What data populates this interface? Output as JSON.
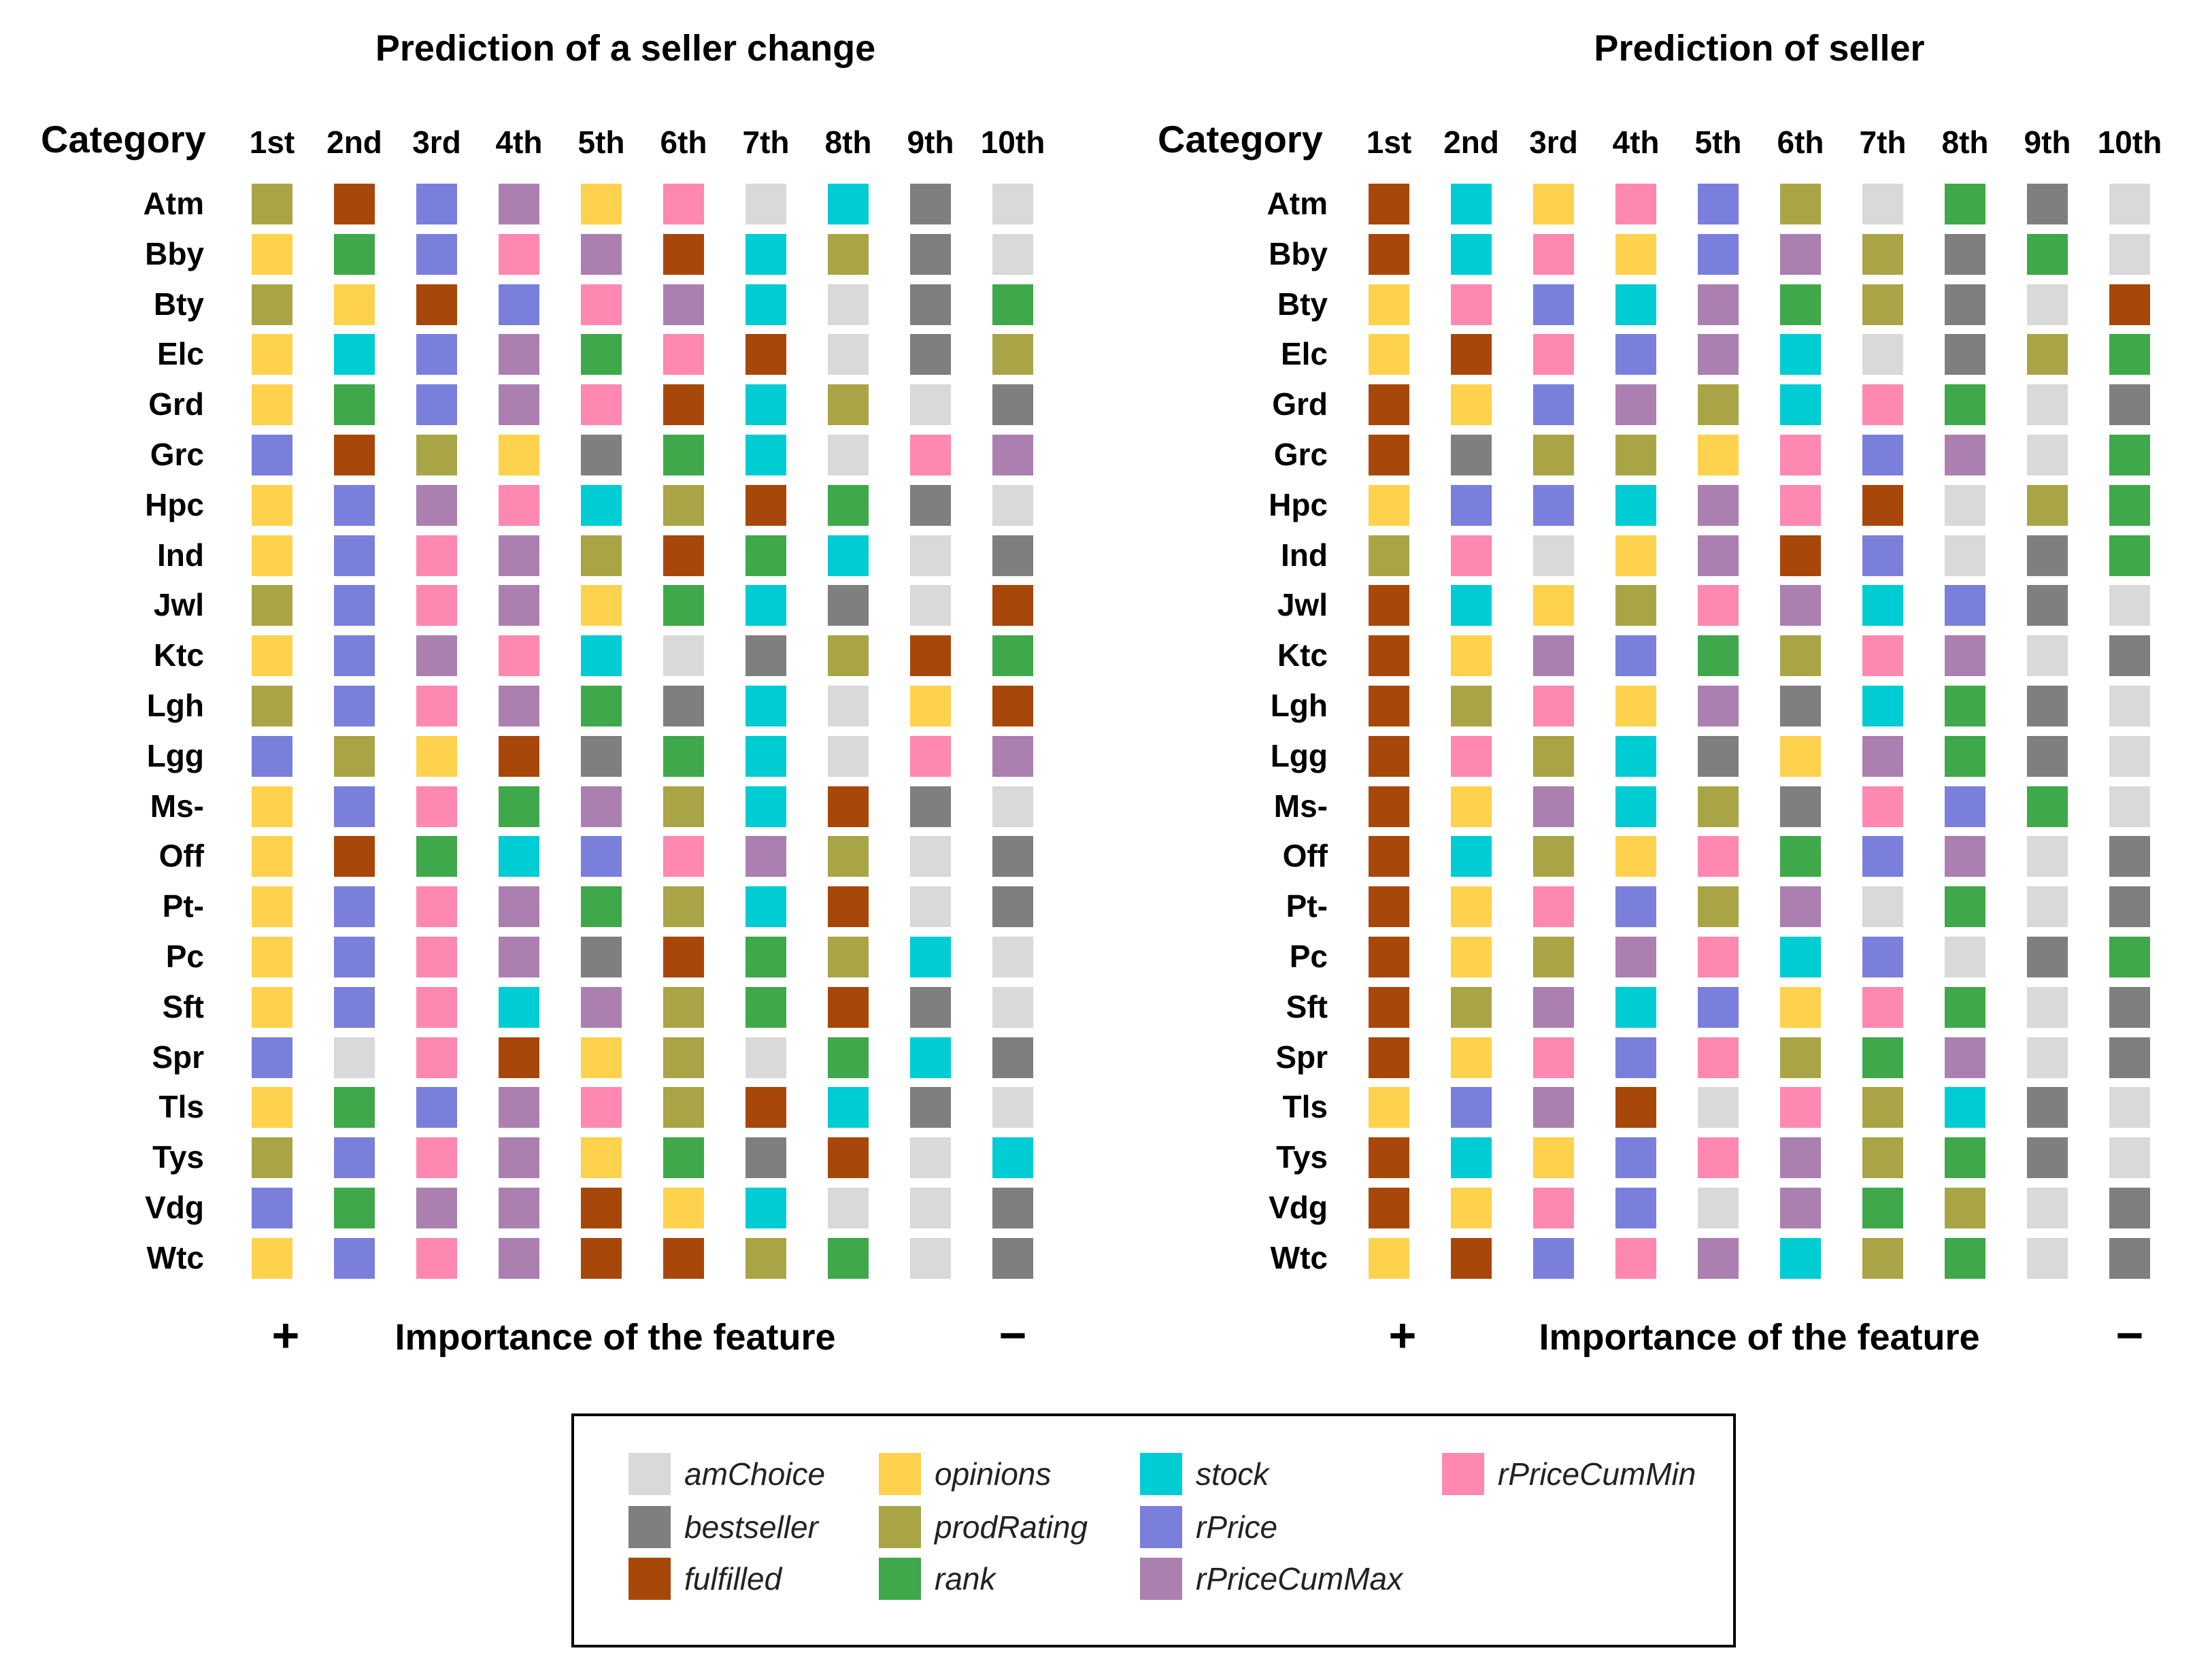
{
  "chart_data": {
    "type": "heatmap",
    "color_map": {
      "amChoice": "#d9d9d9",
      "bestseller": "#7f7f7f",
      "fulfilled": "#a8470a",
      "opinions": "#ffd24d",
      "prodRating": "#a9a547",
      "rank": "#3fa84a",
      "stock": "#00ccd4",
      "rPrice": "#7b7fdc",
      "rPriceCumMax": "#ab7fb0",
      "rPriceCumMin": "#ff88b0"
    },
    "legend": [
      [
        "amChoice",
        "bestseller",
        "fulfilled"
      ],
      [
        "opinions",
        "prodRating",
        "rank"
      ],
      [
        "stock",
        "rPrice",
        "rPriceCumMax"
      ],
      [
        "rPriceCumMin"
      ]
    ],
    "columns": [
      "1st",
      "2nd",
      "3rd",
      "4th",
      "5th",
      "6th",
      "7th",
      "8th",
      "9th",
      "10th"
    ],
    "column_header": "Category",
    "xlabel": "Importance of the feature",
    "x_left_sign": "+",
    "x_right_sign": "−",
    "panels": [
      {
        "title": "Prediction of a seller change",
        "rows": [
          {
            "label": "Atm",
            "values": [
              "prodRating",
              "fulfilled",
              "rPrice",
              "rPriceCumMax",
              "opinions",
              "rPriceCumMin",
              "amChoice",
              "stock",
              "bestseller",
              "amChoice"
            ]
          },
          {
            "label": "Bby",
            "values": [
              "opinions",
              "rank",
              "rPrice",
              "rPriceCumMin",
              "rPriceCumMax",
              "fulfilled",
              "stock",
              "prodRating",
              "bestseller",
              "amChoice"
            ]
          },
          {
            "label": "Bty",
            "values": [
              "prodRating",
              "opinions",
              "fulfilled",
              "rPrice",
              "rPriceCumMin",
              "rPriceCumMax",
              "stock",
              "amChoice",
              "bestseller",
              "rank"
            ]
          },
          {
            "label": "Elc",
            "values": [
              "opinions",
              "stock",
              "rPrice",
              "rPriceCumMax",
              "rank",
              "rPriceCumMin",
              "fulfilled",
              "amChoice",
              "bestseller",
              "prodRating"
            ]
          },
          {
            "label": "Grd",
            "values": [
              "opinions",
              "rank",
              "rPrice",
              "rPriceCumMax",
              "rPriceCumMin",
              "fulfilled",
              "stock",
              "prodRating",
              "amChoice",
              "bestseller"
            ]
          },
          {
            "label": "Grc",
            "values": [
              "rPrice",
              "fulfilled",
              "prodRating",
              "opinions",
              "bestseller",
              "rank",
              "stock",
              "amChoice",
              "rPriceCumMin",
              "rPriceCumMax"
            ]
          },
          {
            "label": "Hpc",
            "values": [
              "opinions",
              "rPrice",
              "rPriceCumMax",
              "rPriceCumMin",
              "stock",
              "prodRating",
              "fulfilled",
              "rank",
              "bestseller",
              "amChoice"
            ]
          },
          {
            "label": "Ind",
            "values": [
              "opinions",
              "rPrice",
              "rPriceCumMin",
              "rPriceCumMax",
              "prodRating",
              "fulfilled",
              "rank",
              "stock",
              "amChoice",
              "bestseller"
            ]
          },
          {
            "label": "Jwl",
            "values": [
              "prodRating",
              "rPrice",
              "rPriceCumMin",
              "rPriceCumMax",
              "opinions",
              "rank",
              "stock",
              "bestseller",
              "amChoice",
              "fulfilled"
            ]
          },
          {
            "label": "Ktc",
            "values": [
              "opinions",
              "rPrice",
              "rPriceCumMax",
              "rPriceCumMin",
              "stock",
              "amChoice",
              "bestseller",
              "prodRating",
              "fulfilled",
              "rank"
            ]
          },
          {
            "label": "Lgh",
            "values": [
              "prodRating",
              "rPrice",
              "rPriceCumMin",
              "rPriceCumMax",
              "rank",
              "bestseller",
              "stock",
              "amChoice",
              "opinions",
              "fulfilled"
            ]
          },
          {
            "label": "Lgg",
            "values": [
              "rPrice",
              "prodRating",
              "opinions",
              "fulfilled",
              "bestseller",
              "rank",
              "stock",
              "amChoice",
              "rPriceCumMin",
              "rPriceCumMax"
            ]
          },
          {
            "label": "Ms-",
            "values": [
              "opinions",
              "rPrice",
              "rPriceCumMin",
              "rank",
              "rPriceCumMax",
              "prodRating",
              "stock",
              "fulfilled",
              "bestseller",
              "amChoice"
            ]
          },
          {
            "label": "Off",
            "values": [
              "opinions",
              "fulfilled",
              "rank",
              "stock",
              "rPrice",
              "rPriceCumMin",
              "rPriceCumMax",
              "prodRating",
              "amChoice",
              "bestseller"
            ]
          },
          {
            "label": "Pt-",
            "values": [
              "opinions",
              "rPrice",
              "rPriceCumMin",
              "rPriceCumMax",
              "rank",
              "prodRating",
              "stock",
              "fulfilled",
              "amChoice",
              "bestseller"
            ]
          },
          {
            "label": "Pc",
            "values": [
              "opinions",
              "rPrice",
              "rPriceCumMin",
              "rPriceCumMax",
              "bestseller",
              "fulfilled",
              "rank",
              "prodRating",
              "stock",
              "amChoice"
            ]
          },
          {
            "label": "Sft",
            "values": [
              "opinions",
              "rPrice",
              "rPriceCumMin",
              "stock",
              "rPriceCumMax",
              "prodRating",
              "rank",
              "fulfilled",
              "bestseller",
              "amChoice"
            ]
          },
          {
            "label": "Spr",
            "values": [
              "rPrice",
              "amChoice",
              "rPriceCumMin",
              "fulfilled",
              "opinions",
              "prodRating",
              "amChoice",
              "rank",
              "stock",
              "bestseller"
            ]
          },
          {
            "label": "Tls",
            "values": [
              "opinions",
              "rank",
              "rPrice",
              "rPriceCumMax",
              "rPriceCumMin",
              "prodRating",
              "fulfilled",
              "stock",
              "bestseller",
              "amChoice"
            ]
          },
          {
            "label": "Tys",
            "values": [
              "prodRating",
              "rPrice",
              "rPriceCumMin",
              "rPriceCumMax",
              "opinions",
              "rank",
              "bestseller",
              "fulfilled",
              "amChoice",
              "stock"
            ]
          },
          {
            "label": "Vdg",
            "values": [
              "rPrice",
              "rank",
              "rPriceCumMax",
              "rPriceCumMax",
              "fulfilled",
              "opinions",
              "stock",
              "amChoice",
              "amChoice",
              "bestseller"
            ]
          },
          {
            "label": "Wtc",
            "values": [
              "opinions",
              "rPrice",
              "rPriceCumMin",
              "rPriceCumMax",
              "fulfilled",
              "fulfilled",
              "prodRating",
              "rank",
              "amChoice",
              "bestseller"
            ]
          }
        ]
      },
      {
        "title": "Prediction of seller",
        "rows": [
          {
            "label": "Atm",
            "values": [
              "fulfilled",
              "stock",
              "opinions",
              "rPriceCumMin",
              "rPrice",
              "prodRating",
              "amChoice",
              "rank",
              "bestseller",
              "amChoice"
            ]
          },
          {
            "label": "Bby",
            "values": [
              "fulfilled",
              "stock",
              "rPriceCumMin",
              "opinions",
              "rPrice",
              "rPriceCumMax",
              "prodRating",
              "bestseller",
              "rank",
              "amChoice"
            ]
          },
          {
            "label": "Bty",
            "values": [
              "opinions",
              "rPriceCumMin",
              "rPrice",
              "stock",
              "rPriceCumMax",
              "rank",
              "prodRating",
              "bestseller",
              "amChoice",
              "fulfilled"
            ]
          },
          {
            "label": "Elc",
            "values": [
              "opinions",
              "fulfilled",
              "rPriceCumMin",
              "rPrice",
              "rPriceCumMax",
              "stock",
              "amChoice",
              "bestseller",
              "prodRating",
              "rank"
            ]
          },
          {
            "label": "Grd",
            "values": [
              "fulfilled",
              "opinions",
              "rPrice",
              "rPriceCumMax",
              "prodRating",
              "stock",
              "rPriceCumMin",
              "rank",
              "amChoice",
              "bestseller"
            ]
          },
          {
            "label": "Grc",
            "values": [
              "fulfilled",
              "bestseller",
              "prodRating",
              "prodRating",
              "opinions",
              "rPriceCumMin",
              "rPrice",
              "rPriceCumMax",
              "amChoice",
              "rank"
            ]
          },
          {
            "label": "Hpc",
            "values": [
              "opinions",
              "rPrice",
              "rPrice",
              "stock",
              "rPriceCumMax",
              "rPriceCumMin",
              "fulfilled",
              "amChoice",
              "prodRating",
              "rank"
            ]
          },
          {
            "label": "Ind",
            "values": [
              "prodRating",
              "rPriceCumMin",
              "amChoice",
              "opinions",
              "rPriceCumMax",
              "fulfilled",
              "rPrice",
              "amChoice",
              "bestseller",
              "rank"
            ]
          },
          {
            "label": "Jwl",
            "values": [
              "fulfilled",
              "stock",
              "opinions",
              "prodRating",
              "rPriceCumMin",
              "rPriceCumMax",
              "stock",
              "rPrice",
              "bestseller",
              "amChoice"
            ]
          },
          {
            "label": "Ktc",
            "values": [
              "fulfilled",
              "opinions",
              "rPriceCumMax",
              "rPrice",
              "rank",
              "prodRating",
              "rPriceCumMin",
              "rPriceCumMax",
              "amChoice",
              "bestseller"
            ]
          },
          {
            "label": "Lgh",
            "values": [
              "fulfilled",
              "prodRating",
              "rPriceCumMin",
              "opinions",
              "rPriceCumMax",
              "bestseller",
              "stock",
              "rank",
              "bestseller",
              "amChoice"
            ]
          },
          {
            "label": "Lgg",
            "values": [
              "fulfilled",
              "rPriceCumMin",
              "prodRating",
              "stock",
              "bestseller",
              "opinions",
              "rPriceCumMax",
              "rank",
              "bestseller",
              "amChoice"
            ]
          },
          {
            "label": "Ms-",
            "values": [
              "fulfilled",
              "opinions",
              "rPriceCumMax",
              "stock",
              "prodRating",
              "bestseller",
              "rPriceCumMin",
              "rPrice",
              "rank",
              "amChoice"
            ]
          },
          {
            "label": "Off",
            "values": [
              "fulfilled",
              "stock",
              "prodRating",
              "opinions",
              "rPriceCumMin",
              "rank",
              "rPrice",
              "rPriceCumMax",
              "amChoice",
              "bestseller"
            ]
          },
          {
            "label": "Pt-",
            "values": [
              "fulfilled",
              "opinions",
              "rPriceCumMin",
              "rPrice",
              "prodRating",
              "rPriceCumMax",
              "amChoice",
              "rank",
              "amChoice",
              "bestseller"
            ]
          },
          {
            "label": "Pc",
            "values": [
              "fulfilled",
              "opinions",
              "prodRating",
              "rPriceCumMax",
              "rPriceCumMin",
              "stock",
              "rPrice",
              "amChoice",
              "bestseller",
              "rank"
            ]
          },
          {
            "label": "Sft",
            "values": [
              "fulfilled",
              "prodRating",
              "rPriceCumMax",
              "stock",
              "rPrice",
              "opinions",
              "rPriceCumMin",
              "rank",
              "amChoice",
              "bestseller"
            ]
          },
          {
            "label": "Spr",
            "values": [
              "fulfilled",
              "opinions",
              "rPriceCumMin",
              "rPrice",
              "rPriceCumMin",
              "prodRating",
              "rank",
              "rPriceCumMax",
              "amChoice",
              "bestseller"
            ]
          },
          {
            "label": "Tls",
            "values": [
              "opinions",
              "rPrice",
              "rPriceCumMax",
              "fulfilled",
              "amChoice",
              "rPriceCumMin",
              "prodRating",
              "stock",
              "bestseller",
              "amChoice"
            ]
          },
          {
            "label": "Tys",
            "values": [
              "fulfilled",
              "stock",
              "opinions",
              "rPrice",
              "rPriceCumMin",
              "rPriceCumMax",
              "prodRating",
              "rank",
              "bestseller",
              "amChoice"
            ]
          },
          {
            "label": "Vdg",
            "values": [
              "fulfilled",
              "opinions",
              "rPriceCumMin",
              "rPrice",
              "amChoice",
              "rPriceCumMax",
              "rank",
              "prodRating",
              "amChoice",
              "bestseller"
            ]
          },
          {
            "label": "Wtc",
            "values": [
              "opinions",
              "fulfilled",
              "rPrice",
              "rPriceCumMin",
              "rPriceCumMax",
              "stock",
              "prodRating",
              "rank",
              "amChoice",
              "bestseller"
            ]
          }
        ]
      }
    ]
  }
}
